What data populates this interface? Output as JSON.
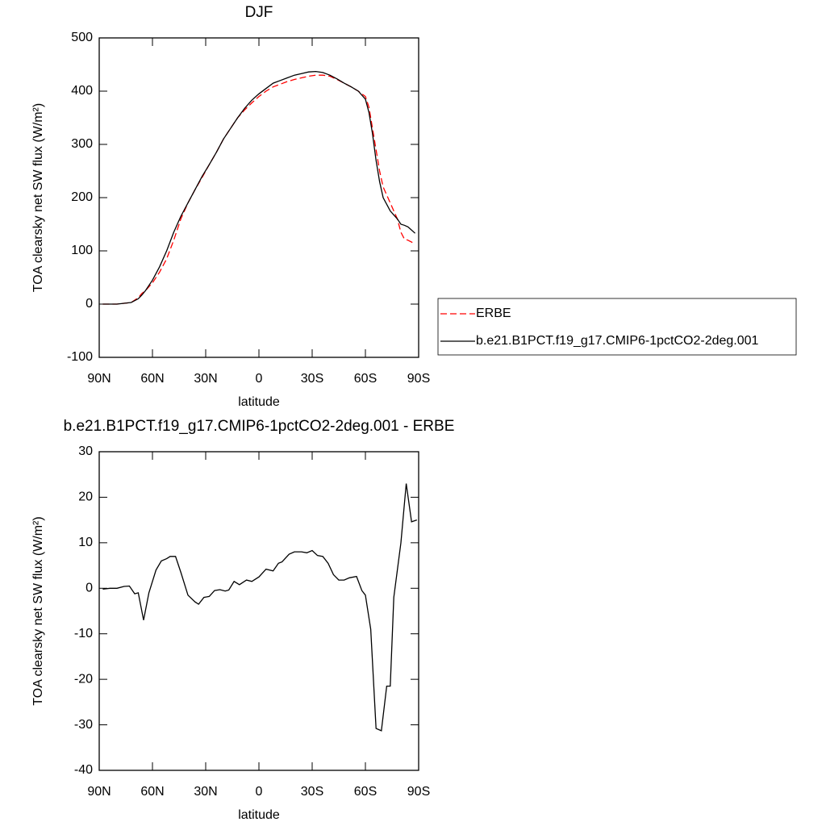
{
  "chart_data": [
    {
      "type": "line",
      "title": "DJF",
      "xlabel": "latitude",
      "ylabel": "TOA clearsky net SW flux (W/m²)",
      "x": [
        88,
        80,
        72,
        68,
        66,
        64,
        60,
        56,
        52,
        48,
        44,
        40,
        36,
        32,
        28,
        24,
        20,
        16,
        12,
        8,
        4,
        0,
        -4,
        -8,
        -12,
        -16,
        -20,
        -24,
        -28,
        -32,
        -36,
        -40,
        -44,
        -48,
        -52,
        -56,
        -60,
        -62,
        -64,
        -66,
        -68,
        -70,
        -74,
        -78,
        -80,
        -82,
        -84,
        -88
      ],
      "series": [
        {
          "name": "ERBE",
          "color": "#ff0000",
          "dash": true,
          "values": [
            0,
            0,
            3,
            12,
            20,
            25,
            40,
            60,
            85,
            120,
            160,
            190,
            215,
            238,
            262,
            285,
            310,
            330,
            350,
            365,
            378,
            390,
            400,
            408,
            413,
            418,
            422,
            425,
            428,
            430,
            430,
            428,
            422,
            415,
            408,
            400,
            390,
            370,
            330,
            290,
            250,
            220,
            190,
            160,
            135,
            122,
            120,
            113
          ]
        },
        {
          "name": "b.e21.B1PCT.f19_g17.CMIP6-1pctCO2-2deg.001",
          "color": "#000000",
          "dash": false,
          "values": [
            0,
            0,
            3,
            10,
            17,
            25,
            45,
            70,
            100,
            135,
            165,
            190,
            215,
            240,
            262,
            285,
            310,
            330,
            350,
            368,
            383,
            395,
            405,
            415,
            420,
            425,
            430,
            433,
            436,
            437,
            435,
            430,
            423,
            415,
            408,
            400,
            385,
            360,
            320,
            270,
            230,
            200,
            175,
            160,
            150,
            148,
            145,
            133
          ]
        }
      ],
      "xlim": [
        90,
        -90
      ],
      "xticks": [
        {
          "value": 90,
          "label": "90N"
        },
        {
          "value": 60,
          "label": "60N"
        },
        {
          "value": 30,
          "label": "30N"
        },
        0,
        {
          "value": -30,
          "label": "30S"
        },
        {
          "value": -60,
          "label": "60S"
        },
        {
          "value": -90,
          "label": "90S"
        }
      ],
      "ylim": [
        -100,
        500
      ],
      "yticks": [
        -100,
        0,
        100,
        200,
        300,
        400,
        500
      ],
      "legend": "right"
    },
    {
      "type": "line",
      "title": "b.e21.B1PCT.f19_g17.CMIP6-1pctCO2-2deg.001 - ERBE",
      "xlabel": "latitude",
      "ylabel": "TOA clearsky net SW flux (W/m²)",
      "x": [
        88,
        84,
        80,
        76,
        73,
        70,
        68,
        65,
        62,
        58,
        55,
        52,
        50,
        47,
        44,
        40,
        36,
        34,
        31,
        28,
        25,
        22,
        19,
        17,
        14,
        11,
        7,
        4,
        0,
        -4,
        -8,
        -11,
        -13,
        -17,
        -20,
        -24,
        -27,
        -30,
        -33,
        -36,
        -39,
        -42,
        -45,
        -48,
        -51,
        -55,
        -58,
        -60,
        -63,
        -66,
        -69,
        -72,
        -74,
        -76,
        -80,
        -83,
        -86,
        -89
      ],
      "series": [
        {
          "name": null,
          "color": "#000000",
          "dash": false,
          "values": [
            -0.2,
            0,
            0,
            0.4,
            0.5,
            -1.2,
            -1,
            -7,
            -1,
            4,
            6,
            6.5,
            7,
            7,
            3.5,
            -1.5,
            -3,
            -3.5,
            -2,
            -1.8,
            -0.5,
            -0.3,
            -0.6,
            -0.4,
            1.5,
            0.8,
            1.8,
            1.5,
            2.5,
            4.2,
            3.8,
            5.5,
            5.8,
            7.5,
            8,
            8,
            7.8,
            8.3,
            7.2,
            7,
            5.5,
            3,
            1.8,
            1.8,
            2.3,
            2.6,
            -0.5,
            -1.5,
            -9,
            -30.8,
            -31.3,
            -21.5,
            -21.5,
            -2,
            10,
            23,
            14.6,
            15
          ]
        }
      ],
      "xlim": [
        90,
        -90
      ],
      "xticks": [
        {
          "value": 90,
          "label": "90N"
        },
        {
          "value": 60,
          "label": "60N"
        },
        {
          "value": 30,
          "label": "30N"
        },
        0,
        {
          "value": -30,
          "label": "30S"
        },
        {
          "value": -60,
          "label": "60S"
        },
        {
          "value": -90,
          "label": "90S"
        }
      ],
      "ylim": [
        -40,
        30
      ],
      "yticks": [
        -40,
        -30,
        -20,
        -10,
        0,
        10,
        20,
        30
      ]
    }
  ]
}
